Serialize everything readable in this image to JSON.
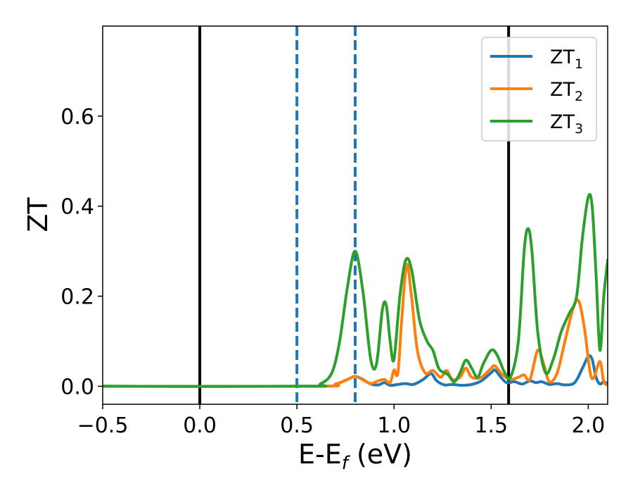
{
  "chart_data": {
    "type": "line",
    "xlabel": {
      "main": "E-E",
      "sub": "f",
      "unit": " (eV)"
    },
    "ylabel": "ZT",
    "xlim": [
      -0.5,
      2.1
    ],
    "ylim": [
      -0.04,
      0.8
    ],
    "x_ticks": [
      -0.5,
      0.0,
      0.5,
      1.0,
      1.5,
      2.0
    ],
    "x_tick_labels": [
      "−0.5",
      "0.0",
      "0.5",
      "1.0",
      "1.5",
      "2.0"
    ],
    "y_ticks": [
      0.0,
      0.2,
      0.4,
      0.6
    ],
    "y_tick_labels": [
      "0.0",
      "0.2",
      "0.4",
      "0.6"
    ],
    "grid": false,
    "legend_position": "top-right",
    "vlines": [
      {
        "x": 0.0,
        "style": "solid",
        "color": "#000000"
      },
      {
        "x": 0.5,
        "style": "dashed",
        "color": "#1f77b4"
      },
      {
        "x": 0.8,
        "style": "dashed",
        "color": "#1f77b4"
      },
      {
        "x": 1.59,
        "style": "solid",
        "color": "#000000"
      }
    ],
    "series": [
      {
        "name": "ZT",
        "sub": "1",
        "color": "#1f77b4",
        "points": [
          [
            -0.5,
            0.0
          ],
          [
            0.6,
            0.0
          ],
          [
            0.7,
            0.005
          ],
          [
            0.76,
            0.015
          ],
          [
            0.8,
            0.022
          ],
          [
            0.84,
            0.015
          ],
          [
            0.88,
            0.005
          ],
          [
            0.92,
            0.003
          ],
          [
            0.95,
            0.008
          ],
          [
            0.98,
            0.002
          ],
          [
            1.02,
            0.004
          ],
          [
            1.06,
            0.006
          ],
          [
            1.1,
            0.004
          ],
          [
            1.15,
            0.015
          ],
          [
            1.19,
            0.028
          ],
          [
            1.22,
            0.012
          ],
          [
            1.26,
            0.003
          ],
          [
            1.3,
            0.004
          ],
          [
            1.35,
            0.002
          ],
          [
            1.4,
            0.004
          ],
          [
            1.45,
            0.012
          ],
          [
            1.5,
            0.03
          ],
          [
            1.52,
            0.036
          ],
          [
            1.55,
            0.02
          ],
          [
            1.58,
            0.008
          ],
          [
            1.62,
            0.01
          ],
          [
            1.66,
            0.005
          ],
          [
            1.7,
            0.012
          ],
          [
            1.73,
            0.008
          ],
          [
            1.76,
            0.01
          ],
          [
            1.8,
            0.004
          ],
          [
            1.84,
            0.006
          ],
          [
            1.88,
            0.003
          ],
          [
            1.93,
            0.008
          ],
          [
            1.97,
            0.04
          ],
          [
            2.0,
            0.066
          ],
          [
            2.02,
            0.06
          ],
          [
            2.04,
            0.02
          ],
          [
            2.06,
            0.005
          ],
          [
            2.08,
            0.01
          ],
          [
            2.1,
            0.003
          ]
        ]
      },
      {
        "name": "ZT",
        "sub": "2",
        "color": "#ff7f0e",
        "points": [
          [
            -0.5,
            0.0
          ],
          [
            0.6,
            0.0
          ],
          [
            0.7,
            0.005
          ],
          [
            0.76,
            0.015
          ],
          [
            0.8,
            0.022
          ],
          [
            0.84,
            0.014
          ],
          [
            0.88,
            0.006
          ],
          [
            0.92,
            0.012
          ],
          [
            0.95,
            0.015
          ],
          [
            0.98,
            0.008
          ],
          [
            1.0,
            0.036
          ],
          [
            1.02,
            0.03
          ],
          [
            1.04,
            0.15
          ],
          [
            1.065,
            0.27
          ],
          [
            1.09,
            0.2
          ],
          [
            1.12,
            0.08
          ],
          [
            1.16,
            0.03
          ],
          [
            1.2,
            0.035
          ],
          [
            1.24,
            0.02
          ],
          [
            1.27,
            0.035
          ],
          [
            1.3,
            0.015
          ],
          [
            1.34,
            0.02
          ],
          [
            1.37,
            0.04
          ],
          [
            1.4,
            0.02
          ],
          [
            1.45,
            0.02
          ],
          [
            1.5,
            0.04
          ],
          [
            1.52,
            0.045
          ],
          [
            1.56,
            0.025
          ],
          [
            1.6,
            0.015
          ],
          [
            1.64,
            0.02
          ],
          [
            1.67,
            0.025
          ],
          [
            1.7,
            0.015
          ],
          [
            1.74,
            0.08
          ],
          [
            1.77,
            0.05
          ],
          [
            1.8,
            0.01
          ],
          [
            1.84,
            0.03
          ],
          [
            1.88,
            0.1
          ],
          [
            1.92,
            0.17
          ],
          [
            1.95,
            0.19
          ],
          [
            1.98,
            0.13
          ],
          [
            2.01,
            0.03
          ],
          [
            2.03,
            0.02
          ],
          [
            2.06,
            0.055
          ],
          [
            2.08,
            0.01
          ],
          [
            2.1,
            0.003
          ]
        ]
      },
      {
        "name": "ZT",
        "sub": "3",
        "color": "#2ca02c",
        "points": [
          [
            -0.5,
            0.0
          ],
          [
            0.55,
            0.0
          ],
          [
            0.62,
            0.005
          ],
          [
            0.68,
            0.03
          ],
          [
            0.72,
            0.1
          ],
          [
            0.76,
            0.22
          ],
          [
            0.8,
            0.3
          ],
          [
            0.84,
            0.21
          ],
          [
            0.88,
            0.06
          ],
          [
            0.91,
            0.05
          ],
          [
            0.94,
            0.17
          ],
          [
            0.96,
            0.18
          ],
          [
            0.98,
            0.1
          ],
          [
            1.0,
            0.06
          ],
          [
            1.03,
            0.2
          ],
          [
            1.06,
            0.28
          ],
          [
            1.09,
            0.26
          ],
          [
            1.13,
            0.15
          ],
          [
            1.17,
            0.1
          ],
          [
            1.2,
            0.08
          ],
          [
            1.23,
            0.04
          ],
          [
            1.26,
            0.03
          ],
          [
            1.28,
            0.025
          ],
          [
            1.31,
            0.01
          ],
          [
            1.34,
            0.03
          ],
          [
            1.37,
            0.058
          ],
          [
            1.4,
            0.04
          ],
          [
            1.43,
            0.02
          ],
          [
            1.46,
            0.05
          ],
          [
            1.5,
            0.08
          ],
          [
            1.53,
            0.07
          ],
          [
            1.57,
            0.03
          ],
          [
            1.6,
            0.02
          ],
          [
            1.64,
            0.1
          ],
          [
            1.67,
            0.3
          ],
          [
            1.69,
            0.35
          ],
          [
            1.71,
            0.3
          ],
          [
            1.74,
            0.12
          ],
          [
            1.78,
            0.03
          ],
          [
            1.82,
            0.06
          ],
          [
            1.86,
            0.12
          ],
          [
            1.9,
            0.16
          ],
          [
            1.94,
            0.2
          ],
          [
            1.97,
            0.33
          ],
          [
            2.0,
            0.42
          ],
          [
            2.02,
            0.4
          ],
          [
            2.04,
            0.25
          ],
          [
            2.06,
            0.08
          ],
          [
            2.08,
            0.2
          ],
          [
            2.1,
            0.28
          ]
        ]
      }
    ]
  }
}
